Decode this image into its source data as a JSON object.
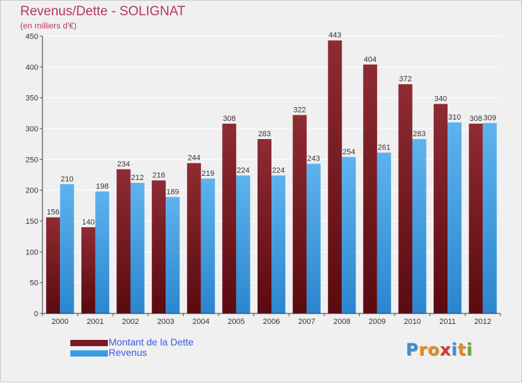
{
  "header": {
    "title": "Revenus/Dette - SOLIGNAT",
    "subtitle": "(en milliers d'€)"
  },
  "legend": {
    "items": [
      {
        "label": "Montant de la Dette",
        "color": "#7a1a22"
      },
      {
        "label": "Revenus",
        "color": "#3c9be0"
      }
    ]
  },
  "branding": {
    "logo_letters": [
      {
        "ch": "P",
        "color": "#3d8fd6"
      },
      {
        "ch": "r",
        "color": "#e58a1f"
      },
      {
        "ch": "o",
        "color": "#e58a1f"
      },
      {
        "ch": "x",
        "color": "#d23c2a"
      },
      {
        "ch": "i",
        "color": "#3d8fd6"
      },
      {
        "ch": "t",
        "color": "#e58a1f"
      },
      {
        "ch": "i",
        "color": "#6aa632"
      }
    ]
  },
  "chart_data": {
    "type": "bar",
    "title": "Revenus/Dette - SOLIGNAT",
    "subtitle": "(en milliers d'€)",
    "categories": [
      "2000",
      "2001",
      "2002",
      "2003",
      "2004",
      "2005",
      "2006",
      "2007",
      "2008",
      "2009",
      "2010",
      "2011",
      "2012"
    ],
    "series": [
      {
        "name": "Montant de la Dette",
        "color": "#7a1a22",
        "values": [
          156,
          140,
          234,
          216,
          244,
          308,
          283,
          322,
          443,
          404,
          372,
          340,
          308
        ]
      },
      {
        "name": "Revenus",
        "color": "#3c9be0",
        "values": [
          210,
          198,
          212,
          189,
          219,
          224,
          224,
          243,
          254,
          261,
          283,
          310,
          309
        ]
      }
    ],
    "ylim": [
      0,
      450
    ],
    "yticks": [
      0,
      50,
      100,
      150,
      200,
      250,
      300,
      350,
      400,
      450
    ],
    "grid": true,
    "legend_position": "bottom-left"
  }
}
